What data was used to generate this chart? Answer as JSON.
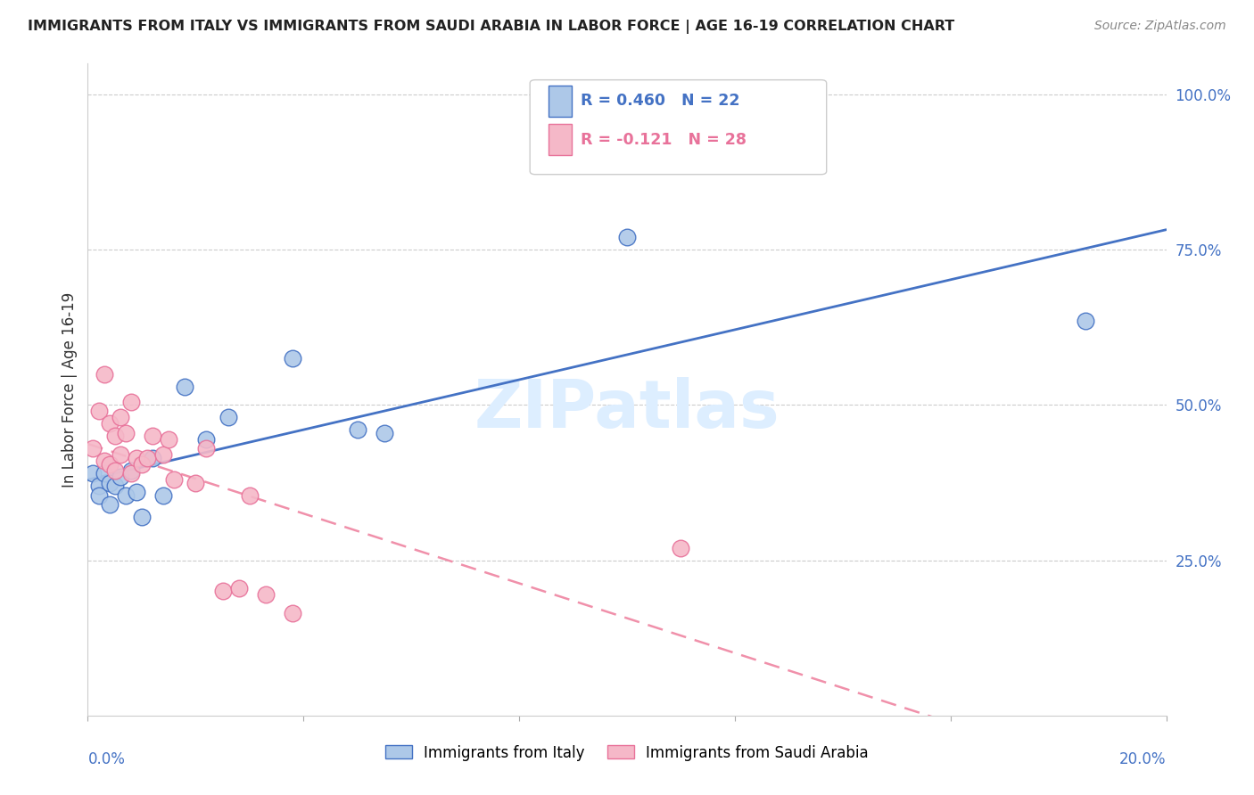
{
  "title": "IMMIGRANTS FROM ITALY VS IMMIGRANTS FROM SAUDI ARABIA IN LABOR FORCE | AGE 16-19 CORRELATION CHART",
  "source": "Source: ZipAtlas.com",
  "ylabel": "In Labor Force | Age 16-19",
  "legend_italy_label": "Immigrants from Italy",
  "legend_saudi_label": "Immigrants from Saudi Arabia",
  "italy_color": "#adc8e8",
  "saudi_color": "#f5b8c8",
  "italy_edge_color": "#4472c4",
  "saudi_edge_color": "#e8729a",
  "italy_line_color": "#4472c4",
  "saudi_line_color": "#f090aa",
  "watermark": "ZIPatlas",
  "watermark_color": "#ddeeff",
  "italy_x": [
    0.001,
    0.002,
    0.002,
    0.003,
    0.004,
    0.004,
    0.005,
    0.006,
    0.007,
    0.008,
    0.009,
    0.01,
    0.012,
    0.014,
    0.018,
    0.022,
    0.026,
    0.038,
    0.05,
    0.055,
    0.1,
    0.185
  ],
  "italy_y": [
    0.39,
    0.37,
    0.355,
    0.39,
    0.375,
    0.34,
    0.37,
    0.385,
    0.355,
    0.395,
    0.36,
    0.32,
    0.415,
    0.355,
    0.53,
    0.445,
    0.48,
    0.575,
    0.46,
    0.455,
    0.77,
    0.635
  ],
  "saudi_x": [
    0.001,
    0.002,
    0.003,
    0.003,
    0.004,
    0.004,
    0.005,
    0.005,
    0.006,
    0.006,
    0.007,
    0.008,
    0.008,
    0.009,
    0.01,
    0.011,
    0.012,
    0.014,
    0.015,
    0.016,
    0.02,
    0.022,
    0.025,
    0.028,
    0.03,
    0.033,
    0.038,
    0.11
  ],
  "saudi_y": [
    0.43,
    0.49,
    0.55,
    0.41,
    0.47,
    0.405,
    0.45,
    0.395,
    0.48,
    0.42,
    0.455,
    0.505,
    0.39,
    0.415,
    0.405,
    0.415,
    0.45,
    0.42,
    0.445,
    0.38,
    0.375,
    0.43,
    0.2,
    0.205,
    0.355,
    0.195,
    0.165,
    0.27
  ],
  "xlim": [
    0.0,
    0.2
  ],
  "ylim": [
    0.0,
    1.05
  ],
  "yticks": [
    0.25,
    0.5,
    0.75,
    1.0
  ],
  "ytick_labels": [
    "25.0%",
    "50.0%",
    "75.0%",
    "100.0%"
  ],
  "xticks": [
    0.0,
    0.04,
    0.08,
    0.12,
    0.16,
    0.2
  ]
}
